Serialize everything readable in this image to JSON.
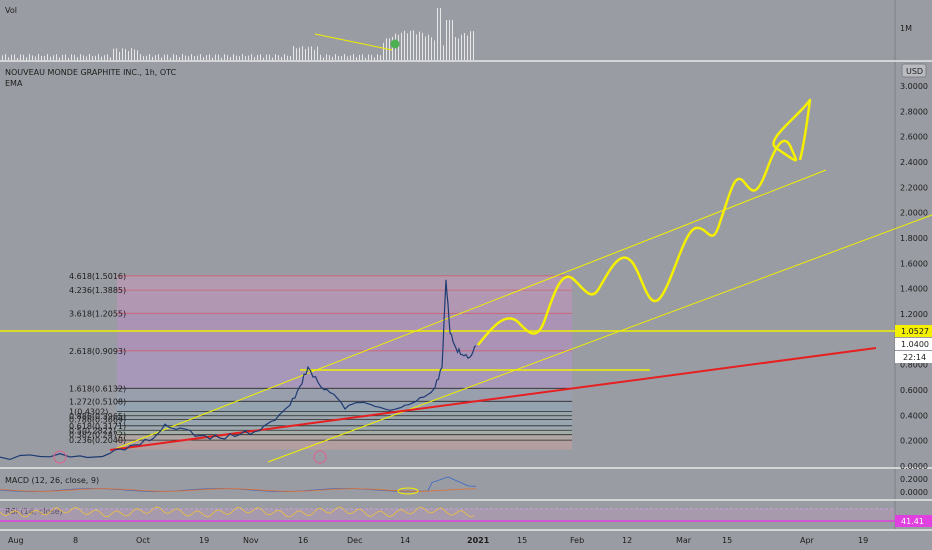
{
  "header": {
    "vol_label": "Vol",
    "vol_axis_label": "1M",
    "symbol_title": "NOUVEAU MONDE GRAPHITE INC., 1h, OTC",
    "ema_label": "EMA",
    "currency_button": "USD",
    "macd_label": "MACD (12, 26, close, 9)",
    "rsi_label": "RSI (14, close)"
  },
  "chart_data": {
    "type": "line",
    "title": "NOUVEAU MONDE GRAPHITE INC., 1h, OTC",
    "y_ticks": [
      "3.0000",
      "2.8000",
      "2.6000",
      "2.4000",
      "2.2000",
      "2.0000",
      "1.8000",
      "1.6000",
      "1.4000",
      "1.2000",
      "0.8000",
      "0.6000",
      "0.4000",
      "0.2000",
      "0.0000"
    ],
    "ylim": [
      0,
      3
    ],
    "x_ticks": [
      "Aug",
      "8",
      "Oct",
      "19",
      "Nov",
      "16",
      "Dec",
      "14",
      "2021",
      "15",
      "Feb",
      "12",
      "Mar",
      "15",
      "Apr",
      "19"
    ],
    "price_badges": {
      "current": "1.0527",
      "line_level": "1.0400",
      "countdown": "22:14"
    },
    "fib_levels": [
      {
        "label": "4.618(1.5016)",
        "value": 1.5016
      },
      {
        "label": "4.236(1.3885)",
        "value": 1.3885
      },
      {
        "label": "3.618(1.2055)",
        "value": 1.2055
      },
      {
        "label": "2.618(0.9093)",
        "value": 0.9093
      },
      {
        "label": "1.618(0.6132)",
        "value": 0.6132
      },
      {
        "label": "1.272(0.5108)",
        "value": 0.5108
      },
      {
        "label": "1(0.4302)",
        "value": 0.4302
      },
      {
        "label": "0.886(0.3965)",
        "value": 0.3965
      },
      {
        "label": "0.786(0.3669)",
        "value": 0.3669
      },
      {
        "label": "0.618(0.3171)",
        "value": 0.3171
      },
      {
        "label": "0.5(0.2822)",
        "value": 0.2822
      },
      {
        "label": "0.382(0.2472)",
        "value": 0.2472
      },
      {
        "label": "0.236(0.2040)",
        "value": 0.204
      }
    ],
    "price_series": [
      {
        "t": 0,
        "y": 0.07
      },
      {
        "t": 40,
        "y": 0.075
      },
      {
        "t": 80,
        "y": 0.08
      },
      {
        "t": 110,
        "y": 0.1
      },
      {
        "t": 130,
        "y": 0.16
      },
      {
        "t": 150,
        "y": 0.2
      },
      {
        "t": 165,
        "y": 0.33
      },
      {
        "t": 180,
        "y": 0.3
      },
      {
        "t": 200,
        "y": 0.24
      },
      {
        "t": 220,
        "y": 0.22
      },
      {
        "t": 240,
        "y": 0.25
      },
      {
        "t": 260,
        "y": 0.28
      },
      {
        "t": 275,
        "y": 0.36
      },
      {
        "t": 290,
        "y": 0.48
      },
      {
        "t": 300,
        "y": 0.63
      },
      {
        "t": 308,
        "y": 0.78
      },
      {
        "t": 318,
        "y": 0.66
      },
      {
        "t": 330,
        "y": 0.58
      },
      {
        "t": 345,
        "y": 0.45
      },
      {
        "t": 360,
        "y": 0.5
      },
      {
        "t": 375,
        "y": 0.47
      },
      {
        "t": 390,
        "y": 0.44
      },
      {
        "t": 405,
        "y": 0.48
      },
      {
        "t": 420,
        "y": 0.54
      },
      {
        "t": 435,
        "y": 0.62
      },
      {
        "t": 442,
        "y": 0.78
      },
      {
        "t": 446,
        "y": 1.47
      },
      {
        "t": 450,
        "y": 1.05
      },
      {
        "t": 456,
        "y": 0.93
      },
      {
        "t": 462,
        "y": 0.88
      },
      {
        "t": 470,
        "y": 0.86
      },
      {
        "t": 476,
        "y": 0.95
      }
    ],
    "rsi_level": "41.41"
  }
}
